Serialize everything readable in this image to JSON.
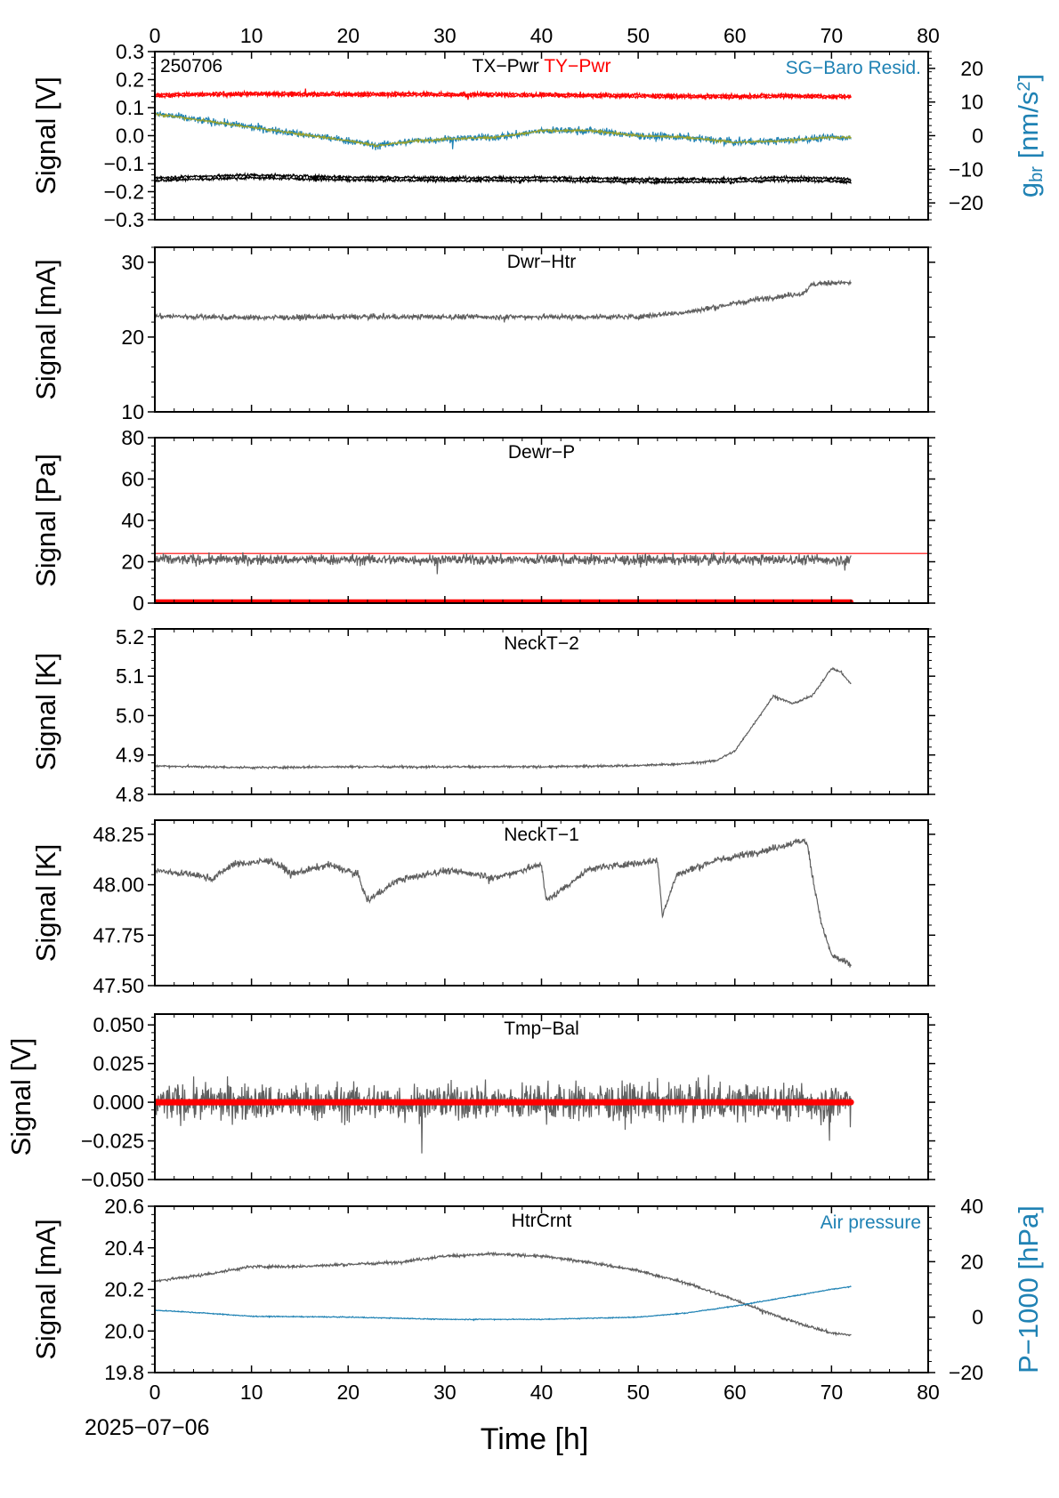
{
  "date_label": "2025−07−06",
  "colors": {
    "gray": "#5f5f5f",
    "red": "#ff0000",
    "blue": "#1f82b4",
    "olive": "#9aa32c",
    "black": "#000000"
  },
  "chart_data": [
    {
      "id": "tx-ty-pwr",
      "type": "line",
      "corner_label": "250706",
      "title_parts": [
        {
          "text": "TX−Pwr",
          "color": "#000000"
        },
        {
          "text": " TY−Pwr",
          "color": "#ff0000"
        }
      ],
      "right_title": {
        "text": "SG−Baro Resid.",
        "color": "#1f82b4"
      },
      "ylabel": "Signal [V]",
      "ylim": [
        -0.3,
        0.3
      ],
      "yticks": [
        -0.3,
        -0.2,
        -0.1,
        0.0,
        0.1,
        0.2,
        0.3
      ],
      "ytick_labels": [
        "−0.3",
        "−0.2",
        "−0.1",
        "0.0",
        "0.1",
        "0.2",
        "0.3"
      ],
      "y2label_main": "g",
      "y2label_sub": "br",
      "y2label_unit": " [nm/s",
      "y2label_sup": "2",
      "y2label_end": "]",
      "y2lim": [
        -25,
        25
      ],
      "y2ticks": [
        -20,
        -10,
        0,
        10,
        20
      ],
      "y2tick_labels": [
        "−20",
        "−10",
        "0",
        "10",
        "20"
      ],
      "series": [
        {
          "color": "#ff0000",
          "axis": "left",
          "noise": 0.004,
          "x": [
            0,
            5,
            10,
            20,
            30,
            40,
            50,
            60,
            65,
            72
          ],
          "y": [
            0.147,
            0.15,
            0.152,
            0.15,
            0.15,
            0.148,
            0.145,
            0.142,
            0.145,
            0.142
          ]
        },
        {
          "color": "#ff0000",
          "axis": "left",
          "noise": 0.004,
          "x": [
            0,
            5,
            10,
            20,
            30,
            40,
            50,
            60,
            65,
            72
          ],
          "y": [
            0.14,
            0.144,
            0.146,
            0.144,
            0.144,
            0.142,
            0.139,
            0.136,
            0.139,
            0.136
          ]
        },
        {
          "color": "#000000",
          "axis": "left",
          "noise": 0.004,
          "x": [
            0,
            5,
            10,
            20,
            30,
            40,
            50,
            60,
            65,
            72
          ],
          "y": [
            -0.15,
            -0.145,
            -0.14,
            -0.148,
            -0.15,
            -0.15,
            -0.155,
            -0.155,
            -0.148,
            -0.155
          ]
        },
        {
          "color": "#000000",
          "axis": "left",
          "noise": 0.004,
          "x": [
            0,
            5,
            10,
            20,
            30,
            40,
            50,
            60,
            65,
            72
          ],
          "y": [
            -0.16,
            -0.155,
            -0.15,
            -0.158,
            -0.16,
            -0.16,
            -0.165,
            -0.165,
            -0.158,
            -0.165
          ]
        },
        {
          "color": "#1f82b4",
          "axis": "right",
          "noise": 0.8,
          "x": [
            0,
            5,
            10,
            15,
            20,
            23,
            27,
            30,
            35,
            38,
            40,
            45,
            50,
            55,
            60,
            65,
            70,
            72
          ],
          "y": [
            6.5,
            4.5,
            2.5,
            0.5,
            -1.5,
            -3,
            -1.5,
            -1,
            -0.5,
            0.5,
            1.5,
            1.5,
            0,
            -0.5,
            -2,
            -1.5,
            -0.5,
            -0.5
          ]
        },
        {
          "color": "#9aa32c",
          "axis": "right",
          "noise": 0.25,
          "x": [
            0,
            5,
            10,
            15,
            20,
            23,
            27,
            30,
            35,
            38,
            40,
            45,
            50,
            55,
            60,
            65,
            70,
            72
          ],
          "y": [
            6.5,
            4.5,
            2.5,
            0.5,
            -1.5,
            -3,
            -1.5,
            -1,
            -0.5,
            0.5,
            1.5,
            1.5,
            0,
            -0.5,
            -2,
            -1.5,
            -0.5,
            -0.5
          ]
        }
      ]
    },
    {
      "id": "dwr-htr",
      "type": "line",
      "title": "Dwr−Htr",
      "ylabel": "Signal [mA]",
      "ylim": [
        10,
        32
      ],
      "yticks": [
        10,
        20,
        30
      ],
      "ytick_labels": [
        "10",
        "20",
        "30"
      ],
      "series": [
        {
          "color": "#5f5f5f",
          "noise": 0.25,
          "x": [
            0,
            10,
            20,
            30,
            40,
            50,
            52,
            55,
            58,
            62,
            65,
            67,
            68,
            70,
            72
          ],
          "y": [
            22.8,
            22.6,
            22.7,
            22.7,
            22.7,
            22.7,
            23.0,
            23.3,
            24.0,
            25.0,
            25.5,
            25.8,
            27.0,
            27.3,
            27.2
          ]
        }
      ]
    },
    {
      "id": "dewr-p",
      "type": "line",
      "title": "Dewr−P",
      "ylabel": "Signal [Pa]",
      "ylim": [
        0,
        80
      ],
      "yticks": [
        0,
        20,
        40,
        60,
        80
      ],
      "ytick_labels": [
        "0",
        "20",
        "40",
        "60",
        "80"
      ],
      "reference_line": {
        "y": 24,
        "color": "#ff0000"
      },
      "series": [
        {
          "color": "#5f5f5f",
          "noise": 1.8,
          "x": [
            0,
            72
          ],
          "y": [
            21,
            21
          ]
        },
        {
          "color": "#ff0000",
          "noise": 0,
          "width": 6,
          "x": [
            0,
            72
          ],
          "y": [
            0.5,
            0.5
          ]
        }
      ]
    },
    {
      "id": "neckt-2",
      "type": "line",
      "title": "NeckT−2",
      "ylabel": "Signal [K]",
      "ylim": [
        4.8,
        5.22
      ],
      "yticks": [
        4.8,
        4.9,
        5.0,
        5.1,
        5.2
      ],
      "ytick_labels": [
        "4.8",
        "4.9",
        "5.0",
        "5.1",
        "5.2"
      ],
      "series": [
        {
          "color": "#5f5f5f",
          "noise": 0.002,
          "x": [
            0,
            10,
            20,
            30,
            40,
            50,
            55,
            58,
            60,
            62,
            64,
            66,
            68,
            70,
            71,
            72
          ],
          "y": [
            4.872,
            4.868,
            4.87,
            4.87,
            4.87,
            4.873,
            4.878,
            4.885,
            4.91,
            4.98,
            5.05,
            5.03,
            5.05,
            5.12,
            5.11,
            5.08
          ]
        }
      ]
    },
    {
      "id": "neckt-1",
      "type": "line",
      "title": "NeckT−1",
      "ylabel": "Signal [K]",
      "ylim": [
        47.5,
        48.32
      ],
      "yticks": [
        47.5,
        47.75,
        48.0,
        48.25
      ],
      "ytick_labels": [
        "47.50",
        "47.75",
        "48.00",
        "48.25"
      ],
      "series": [
        {
          "color": "#5f5f5f",
          "noise": 0.012,
          "x": [
            0,
            4,
            6,
            8,
            12,
            13.5,
            14,
            18,
            21,
            22,
            25,
            30,
            34,
            35,
            40,
            40.5,
            45,
            52,
            52.5,
            54,
            58,
            64,
            67,
            67.5,
            68,
            69,
            70,
            72
          ],
          "y": [
            48.07,
            48.05,
            48.03,
            48.1,
            48.12,
            48.08,
            48.05,
            48.1,
            48.05,
            47.92,
            48.02,
            48.07,
            48.05,
            48.03,
            48.1,
            47.92,
            48.08,
            48.12,
            47.85,
            48.05,
            48.12,
            48.18,
            48.22,
            48.2,
            48.05,
            47.8,
            47.65,
            47.6
          ]
        }
      ]
    },
    {
      "id": "tmp-bal",
      "type": "line",
      "title": "Tmp−Bal",
      "ylabel": "Signal [V]",
      "ylim": [
        -0.05,
        0.057
      ],
      "yticks": [
        -0.05,
        -0.025,
        0.0,
        0.025,
        0.05
      ],
      "ytick_labels": [
        "−0.050",
        "−0.025",
        "0.000",
        "0.025",
        "0.050"
      ],
      "series": [
        {
          "color": "#5f5f5f",
          "noise": 0.0085,
          "x": [
            0,
            72
          ],
          "y": [
            0,
            0
          ]
        },
        {
          "color": "#ff0000",
          "noise": 0,
          "width": 7,
          "x": [
            0,
            72
          ],
          "y": [
            0,
            0
          ]
        }
      ]
    },
    {
      "id": "htrcrnt",
      "type": "line",
      "title": "HtrCrnt",
      "right_title": {
        "text": "Air pressure",
        "color": "#1f82b4"
      },
      "ylabel": "Signal [mA]",
      "ylim": [
        19.8,
        20.6
      ],
      "yticks": [
        19.8,
        20.0,
        20.2,
        20.4,
        20.6
      ],
      "ytick_labels": [
        "19.8",
        "20.0",
        "20.2",
        "20.4",
        "20.6"
      ],
      "y2label": "P−1000 [hPa]",
      "y2lim": [
        -20,
        40
      ],
      "y2ticks": [
        -20,
        0,
        20,
        40
      ],
      "y2tick_labels": [
        "−20",
        "0",
        "20",
        "40"
      ],
      "xlabel": "Time [h]",
      "series": [
        {
          "color": "#5f5f5f",
          "axis": "left",
          "noise": 0.005,
          "x": [
            0,
            5,
            10,
            15,
            20,
            25,
            30,
            35,
            40,
            45,
            50,
            55,
            60,
            65,
            70,
            72
          ],
          "y": [
            20.24,
            20.27,
            20.31,
            20.31,
            20.32,
            20.33,
            20.36,
            20.37,
            20.36,
            20.33,
            20.29,
            20.23,
            20.15,
            20.06,
            19.99,
            19.98
          ]
        },
        {
          "color": "#1f82b4",
          "axis": "right",
          "noise": 0.12,
          "x": [
            0,
            5,
            10,
            20,
            30,
            40,
            50,
            55,
            60,
            65,
            70,
            72
          ],
          "y": [
            2.5,
            1.5,
            0.3,
            0,
            -0.8,
            -0.8,
            0,
            1.5,
            4,
            7,
            10,
            11
          ]
        }
      ]
    }
  ],
  "x_axis": {
    "xlim": [
      0,
      80
    ],
    "xticks": [
      0,
      10,
      20,
      30,
      40,
      50,
      60,
      70,
      80
    ],
    "xtick_labels": [
      "0",
      "10",
      "20",
      "30",
      "40",
      "50",
      "60",
      "70",
      "80"
    ],
    "xlabel": "Time [h]"
  }
}
